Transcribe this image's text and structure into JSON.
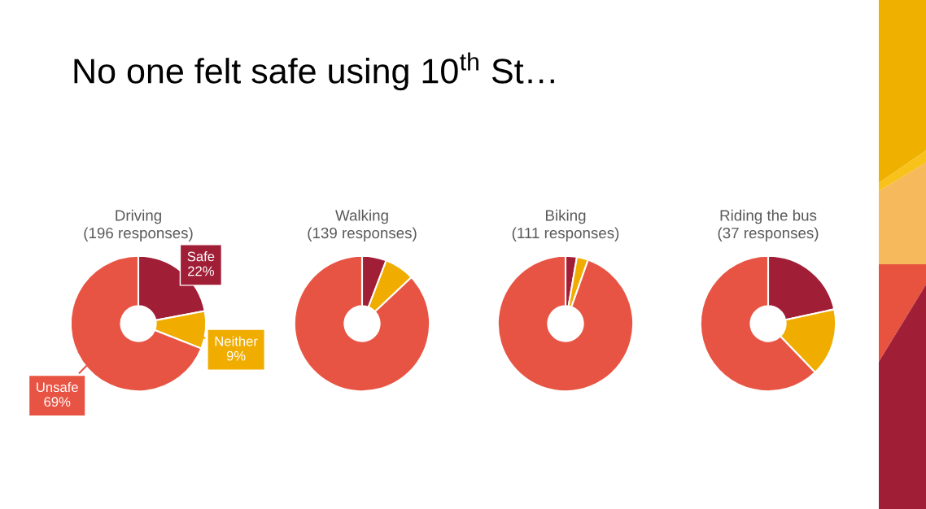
{
  "chart_data": [
    {
      "type": "other",
      "title": "No one felt safe using 10$^{th}$ St…"
    },
    {
      "type": "donut",
      "title": "Driving",
      "subtitle": "(196 responses)",
      "categories": [
        "Safe",
        "Neither",
        "Unsafe"
      ],
      "values": [
        22,
        9,
        69
      ],
      "value_labels": [
        "22%",
        "9%",
        "69%"
      ],
      "colors": [
        "#a01f37",
        "#f0ad00",
        "#e85444"
      ]
    },
    {
      "type": "donut",
      "title": "Walking",
      "subtitle": "(139 responses)",
      "categories": [
        null,
        null,
        null
      ],
      "values": [
        5.8,
        7.2,
        87
      ],
      "colors": [
        "#a01f37",
        "#f0ad00",
        "#e85444"
      ]
    },
    {
      "type": "donut",
      "title": "Biking",
      "subtitle": "(111 responses)",
      "categories": [
        null,
        null,
        null
      ],
      "values": [
        2.7,
        2.7,
        94.6
      ],
      "colors": [
        "#a01f37",
        "#f0ad00",
        "#e85444"
      ]
    },
    {
      "type": "donut",
      "title": "Riding the bus",
      "subtitle": "(37 responses)",
      "categories": [
        null,
        null,
        null
      ],
      "values": [
        21.6,
        16.2,
        62.2
      ],
      "colors": [
        "#a01f37",
        "#f0ad00",
        "#e85444"
      ]
    }
  ]
}
